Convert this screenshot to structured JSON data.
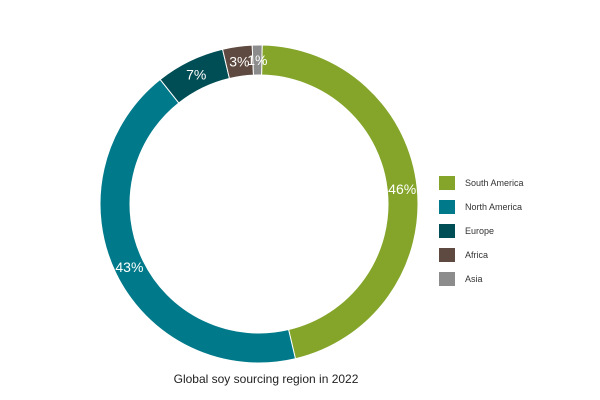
{
  "chart_data": {
    "type": "pie",
    "variant": "donut",
    "title": "Global soy sourcing region in 2022",
    "legend_position": "right",
    "series": [
      {
        "name": "South America",
        "value": 46,
        "label": "46%",
        "color": "#84a529"
      },
      {
        "name": "North America",
        "value": 43,
        "label": "43%",
        "color": "#007a8a"
      },
      {
        "name": "Europe",
        "value": 7,
        "label": "7%",
        "color": "#004e55"
      },
      {
        "name": "Africa",
        "value": 3,
        "label": "3%",
        "color": "#5e4a40"
      },
      {
        "name": "Asia",
        "value": 1,
        "label": "1%",
        "color": "#8c8c8c"
      }
    ]
  }
}
